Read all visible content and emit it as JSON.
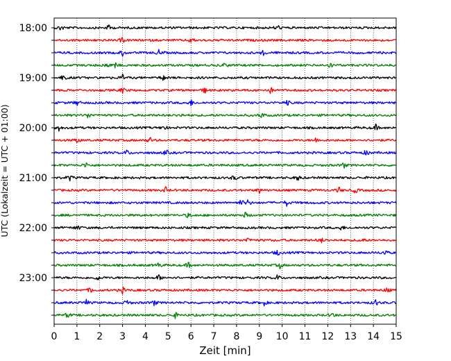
{
  "chart_data": {
    "type": "line",
    "title": "",
    "xlabel": "Zeit  [min]",
    "ylabel": "UTC (Lokalzeit = UTC + 01:00)",
    "xlim": [
      0,
      15
    ],
    "x_ticks": [
      "0",
      "1",
      "2",
      "3",
      "4",
      "5",
      "6",
      "7",
      "8",
      "9",
      "10",
      "11",
      "12",
      "13",
      "14",
      "15"
    ],
    "y_tick_labels": [
      "18:00",
      "19:00",
      "20:00",
      "21:00",
      "22:00",
      "23:00"
    ],
    "grid": "vertical dotted at each minute",
    "legend": "none",
    "trace_interval_minutes": 15,
    "trace_colors": [
      "#000000",
      "#ff0000",
      "#0000ff",
      "#008000"
    ],
    "traces": [
      {
        "start": "18:00",
        "color": "#000000",
        "events_min": [
          0.3,
          2.4,
          9.8
        ]
      },
      {
        "start": "18:15",
        "color": "#ff0000",
        "events_min": [
          3.0,
          6.0
        ]
      },
      {
        "start": "18:30",
        "color": "#0000ff",
        "events_min": [
          3.0,
          4.6,
          9.2
        ]
      },
      {
        "start": "18:45",
        "color": "#008000",
        "events_min": [
          2.3,
          2.65,
          7.5,
          12.1
        ]
      },
      {
        "start": "19:00",
        "color": "#000000",
        "events_min": [
          0.4,
          3.0,
          4.8
        ]
      },
      {
        "start": "19:15",
        "color": "#ff0000",
        "events_min": [
          3.0,
          6.6,
          9.5
        ]
      },
      {
        "start": "19:30",
        "color": "#0000ff",
        "events_min": [
          1.0,
          6.0,
          10.2
        ]
      },
      {
        "start": "19:45",
        "color": "#008000",
        "events_min": [
          1.5,
          5.5,
          9.1
        ]
      },
      {
        "start": "20:00",
        "color": "#000000",
        "events_min": [
          0.2,
          4.8,
          14.1
        ]
      },
      {
        "start": "20:15",
        "color": "#ff0000",
        "events_min": [
          1.0,
          4.2,
          11.5
        ]
      },
      {
        "start": "20:30",
        "color": "#0000ff",
        "events_min": [
          3.2,
          4.9,
          13.7
        ]
      },
      {
        "start": "20:45",
        "color": "#008000",
        "events_min": [
          1.4,
          12.7
        ]
      },
      {
        "start": "21:00",
        "color": "#000000",
        "events_min": [
          0.7,
          7.9,
          10.7
        ]
      },
      {
        "start": "21:15",
        "color": "#ff0000",
        "events_min": [
          4.9,
          9.0,
          12.5,
          13.2
        ]
      },
      {
        "start": "21:30",
        "color": "#0000ff",
        "events_min": [
          8.2,
          8.5,
          10.2
        ]
      },
      {
        "start": "21:45",
        "color": "#008000",
        "events_min": [
          5.9,
          8.4
        ]
      },
      {
        "start": "22:00",
        "color": "#000000",
        "events_min": [
          1.0,
          12.6
        ]
      },
      {
        "start": "22:15",
        "color": "#ff0000",
        "events_min": [
          8.5,
          11.7,
          13.5
        ]
      },
      {
        "start": "22:30",
        "color": "#0000ff",
        "events_min": [
          9.8,
          14.5
        ]
      },
      {
        "start": "22:45",
        "color": "#008000",
        "events_min": [
          4.6,
          5.9,
          9.9
        ]
      },
      {
        "start": "23:00",
        "color": "#000000",
        "events_min": [
          1.9,
          4.6,
          9.8
        ]
      },
      {
        "start": "23:15",
        "color": "#ff0000",
        "events_min": [
          1.6,
          3.0,
          14.6
        ]
      },
      {
        "start": "23:30",
        "color": "#0000ff",
        "events_min": [
          1.4,
          3.2,
          4.4,
          9.2,
          14.1
        ]
      },
      {
        "start": "23:45",
        "color": "#008000",
        "events_min": [
          0.6,
          5.3,
          12.2
        ]
      }
    ]
  }
}
